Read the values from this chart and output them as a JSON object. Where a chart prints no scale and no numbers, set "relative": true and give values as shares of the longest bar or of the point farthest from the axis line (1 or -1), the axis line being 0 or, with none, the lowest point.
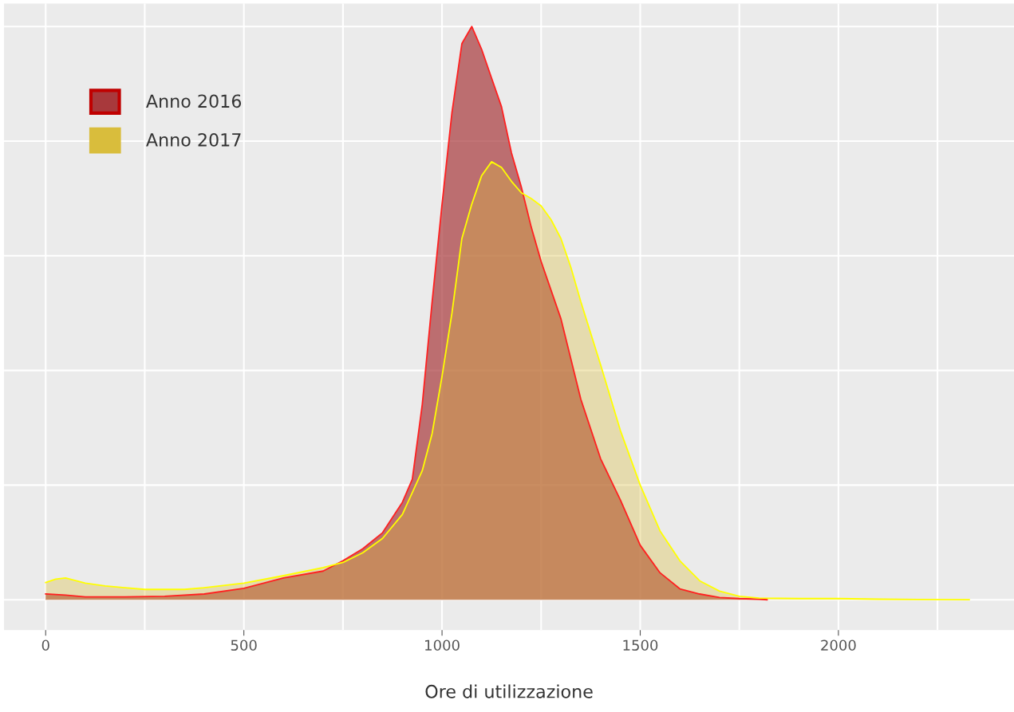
{
  "chart_data": {
    "type": "area",
    "relative": true,
    "xlabel": "Ore di utilizzazione",
    "xlim": [
      -105,
      2443
    ],
    "xticks": [
      0,
      {
        "value": 250,
        "label": null
      },
      500,
      {
        "value": 750,
        "label": null
      },
      1000,
      {
        "value": 1250,
        "label": null
      },
      1500,
      {
        "value": 1750,
        "label": null
      },
      2000,
      {
        "value": 2250,
        "label": null
      }
    ],
    "grid": true,
    "legend": "top left",
    "series": [
      {
        "name": "Anno 2016",
        "color": "#a8393c",
        "x": [
          0,
          50,
          100,
          200,
          300,
          400,
          500,
          600,
          700,
          750,
          800,
          850,
          900,
          925,
          950,
          975,
          1000,
          1025,
          1050,
          1075,
          1100,
          1125,
          1150,
          1175,
          1200,
          1225,
          1250,
          1300,
          1350,
          1400,
          1450,
          1500,
          1550,
          1600,
          1650,
          1700,
          1750,
          1800,
          1820
        ],
        "values": [
          0.01,
          0.008,
          0.005,
          0.005,
          0.006,
          0.01,
          0.02,
          0.038,
          0.05,
          0.068,
          0.089,
          0.117,
          0.17,
          0.21,
          0.34,
          0.52,
          0.69,
          0.85,
          0.97,
          1.0,
          0.96,
          0.91,
          0.86,
          0.78,
          0.72,
          0.65,
          0.59,
          0.49,
          0.35,
          0.246,
          0.174,
          0.095,
          0.047,
          0.019,
          0.01,
          0.004,
          0.002,
          0.001,
          0
        ]
      },
      {
        "name": "Anno 2017",
        "color": "#d9bd3c",
        "x": [
          0,
          25,
          50,
          100,
          150,
          200,
          250,
          300,
          350,
          400,
          500,
          600,
          700,
          750,
          800,
          850,
          900,
          950,
          975,
          1000,
          1025,
          1050,
          1075,
          1100,
          1125,
          1150,
          1175,
          1200,
          1225,
          1250,
          1275,
          1300,
          1325,
          1350,
          1400,
          1450,
          1500,
          1550,
          1600,
          1650,
          1700,
          1750,
          1800,
          1900,
          2000,
          2100,
          2200,
          2330
        ],
        "values": [
          0.03,
          0.036,
          0.038,
          0.029,
          0.024,
          0.021,
          0.018,
          0.018,
          0.018,
          0.021,
          0.029,
          0.042,
          0.056,
          0.065,
          0.082,
          0.107,
          0.149,
          0.225,
          0.29,
          0.39,
          0.5,
          0.63,
          0.69,
          0.74,
          0.764,
          0.754,
          0.73,
          0.71,
          0.7,
          0.687,
          0.663,
          0.63,
          0.58,
          0.52,
          0.41,
          0.295,
          0.2,
          0.12,
          0.068,
          0.033,
          0.015,
          0.006,
          0.003,
          0.002,
          0.002,
          0.001,
          0.0005,
          0
        ]
      }
    ]
  }
}
